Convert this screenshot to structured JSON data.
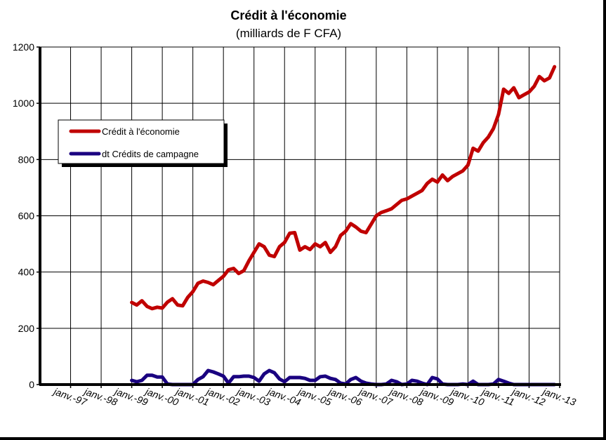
{
  "chart_data": {
    "type": "line",
    "title": "Crédit à l'économie",
    "subtitle": "(milliards de F CFA)",
    "xlabel": "",
    "ylabel": "",
    "ylim": [
      0,
      1200
    ],
    "yticks": [
      0,
      200,
      400,
      600,
      800,
      1000,
      1200
    ],
    "xlim": [
      "janv.-96",
      "janv.-13"
    ],
    "x_tick_labels": [
      "janv.-97",
      "janv.-98",
      "janv.-99",
      "janv.-00",
      "janv.-01",
      "janv.-02",
      "janv.-03",
      "janv.-04",
      "janv.-05",
      "janv.-06",
      "janv.-07",
      "janv.-08",
      "janv.-09",
      "janv.-10",
      "janv.-11",
      "janv.-12",
      "janv.-13"
    ],
    "grid": true,
    "legend_position": "upper-left",
    "series": [
      {
        "name": "Crédit à l'économie",
        "color": "#c00000",
        "points": [
          [
            "1999-01",
            292
          ],
          [
            "1999-03",
            283
          ],
          [
            "1999-05",
            298
          ],
          [
            "1999-07",
            278
          ],
          [
            "1999-09",
            270
          ],
          [
            "1999-11",
            275
          ],
          [
            "2000-01",
            272
          ],
          [
            "2000-03",
            293
          ],
          [
            "2000-05",
            305
          ],
          [
            "2000-07",
            283
          ],
          [
            "2000-09",
            280
          ],
          [
            "2000-11",
            310
          ],
          [
            "2001-01",
            330
          ],
          [
            "2001-03",
            360
          ],
          [
            "2001-05",
            368
          ],
          [
            "2001-07",
            363
          ],
          [
            "2001-09",
            355
          ],
          [
            "2001-11",
            370
          ],
          [
            "2002-01",
            385
          ],
          [
            "2002-03",
            408
          ],
          [
            "2002-05",
            413
          ],
          [
            "2002-07",
            395
          ],
          [
            "2002-09",
            405
          ],
          [
            "2002-11",
            440
          ],
          [
            "2003-01",
            470
          ],
          [
            "2003-03",
            500
          ],
          [
            "2003-05",
            490
          ],
          [
            "2003-07",
            460
          ],
          [
            "2003-09",
            455
          ],
          [
            "2003-11",
            490
          ],
          [
            "2004-01",
            505
          ],
          [
            "2004-03",
            538
          ],
          [
            "2004-05",
            540
          ],
          [
            "2004-07",
            478
          ],
          [
            "2004-09",
            490
          ],
          [
            "2004-11",
            480
          ],
          [
            "2005-01",
            500
          ],
          [
            "2005-03",
            490
          ],
          [
            "2005-05",
            505
          ],
          [
            "2005-07",
            470
          ],
          [
            "2005-09",
            490
          ],
          [
            "2005-11",
            530
          ],
          [
            "2006-01",
            545
          ],
          [
            "2006-03",
            572
          ],
          [
            "2006-05",
            560
          ],
          [
            "2006-07",
            545
          ],
          [
            "2006-09",
            540
          ],
          [
            "2006-11",
            570
          ],
          [
            "2007-01",
            600
          ],
          [
            "2007-03",
            612
          ],
          [
            "2007-05",
            618
          ],
          [
            "2007-07",
            625
          ],
          [
            "2007-09",
            640
          ],
          [
            "2007-11",
            655
          ],
          [
            "2008-01",
            660
          ],
          [
            "2008-03",
            670
          ],
          [
            "2008-05",
            680
          ],
          [
            "2008-07",
            690
          ],
          [
            "2008-09",
            715
          ],
          [
            "2008-11",
            730
          ],
          [
            "2009-01",
            720
          ],
          [
            "2009-03",
            745
          ],
          [
            "2009-05",
            725
          ],
          [
            "2009-07",
            740
          ],
          [
            "2009-09",
            750
          ],
          [
            "2009-11",
            760
          ],
          [
            "2010-01",
            780
          ],
          [
            "2010-03",
            840
          ],
          [
            "2010-05",
            830
          ],
          [
            "2010-07",
            860
          ],
          [
            "2010-09",
            880
          ],
          [
            "2010-11",
            910
          ],
          [
            "2011-01",
            960
          ],
          [
            "2011-03",
            1050
          ],
          [
            "2011-05",
            1035
          ],
          [
            "2011-07",
            1055
          ],
          [
            "2011-09",
            1020
          ],
          [
            "2011-11",
            1030
          ],
          [
            "2012-01",
            1040
          ],
          [
            "2012-03",
            1060
          ],
          [
            "2012-05",
            1095
          ],
          [
            "2012-07",
            1080
          ],
          [
            "2012-09",
            1090
          ],
          [
            "2012-11",
            1130
          ]
        ]
      },
      {
        "name": "dt Crédits de campagne",
        "color": "#1a0080",
        "points": [
          [
            "1999-01",
            15
          ],
          [
            "1999-03",
            10
          ],
          [
            "1999-05",
            15
          ],
          [
            "1999-07",
            33
          ],
          [
            "1999-09",
            33
          ],
          [
            "1999-11",
            27
          ],
          [
            "2000-01",
            27
          ],
          [
            "2000-03",
            2
          ],
          [
            "2000-05",
            0
          ],
          [
            "2000-07",
            0
          ],
          [
            "2000-09",
            0
          ],
          [
            "2000-11",
            0
          ],
          [
            "2001-01",
            0
          ],
          [
            "2001-03",
            18
          ],
          [
            "2001-05",
            28
          ],
          [
            "2001-07",
            50
          ],
          [
            "2001-09",
            45
          ],
          [
            "2001-11",
            38
          ],
          [
            "2002-01",
            30
          ],
          [
            "2002-03",
            5
          ],
          [
            "2002-05",
            28
          ],
          [
            "2002-07",
            28
          ],
          [
            "2002-09",
            30
          ],
          [
            "2002-11",
            30
          ],
          [
            "2003-01",
            25
          ],
          [
            "2003-03",
            12
          ],
          [
            "2003-05",
            38
          ],
          [
            "2003-07",
            50
          ],
          [
            "2003-09",
            42
          ],
          [
            "2003-11",
            20
          ],
          [
            "2004-01",
            10
          ],
          [
            "2004-03",
            25
          ],
          [
            "2004-05",
            25
          ],
          [
            "2004-07",
            25
          ],
          [
            "2004-09",
            22
          ],
          [
            "2004-11",
            15
          ],
          [
            "2005-01",
            15
          ],
          [
            "2005-03",
            28
          ],
          [
            "2005-05",
            30
          ],
          [
            "2005-07",
            22
          ],
          [
            "2005-09",
            18
          ],
          [
            "2005-11",
            5
          ],
          [
            "2006-01",
            2
          ],
          [
            "2006-03",
            18
          ],
          [
            "2006-05",
            25
          ],
          [
            "2006-07",
            12
          ],
          [
            "2006-09",
            5
          ],
          [
            "2006-11",
            2
          ],
          [
            "2007-01",
            0
          ],
          [
            "2007-03",
            0
          ],
          [
            "2007-05",
            2
          ],
          [
            "2007-07",
            15
          ],
          [
            "2007-09",
            10
          ],
          [
            "2007-11",
            0
          ],
          [
            "2008-01",
            2
          ],
          [
            "2008-03",
            15
          ],
          [
            "2008-05",
            12
          ],
          [
            "2008-07",
            5
          ],
          [
            "2008-09",
            0
          ],
          [
            "2008-11",
            25
          ],
          [
            "2009-01",
            20
          ],
          [
            "2009-03",
            2
          ],
          [
            "2009-05",
            0
          ],
          [
            "2009-07",
            0
          ],
          [
            "2009-09",
            0
          ],
          [
            "2009-11",
            2
          ],
          [
            "2010-01",
            0
          ],
          [
            "2010-03",
            12
          ],
          [
            "2010-05",
            0
          ],
          [
            "2010-07",
            0
          ],
          [
            "2010-09",
            0
          ],
          [
            "2010-11",
            2
          ],
          [
            "2011-01",
            18
          ],
          [
            "2011-03",
            12
          ],
          [
            "2011-05",
            5
          ],
          [
            "2011-07",
            0
          ],
          [
            "2011-09",
            0
          ],
          [
            "2011-11",
            0
          ],
          [
            "2012-01",
            0
          ],
          [
            "2012-03",
            0
          ],
          [
            "2012-05",
            0
          ],
          [
            "2012-07",
            0
          ],
          [
            "2012-09",
            0
          ],
          [
            "2012-11",
            0
          ]
        ]
      }
    ]
  }
}
